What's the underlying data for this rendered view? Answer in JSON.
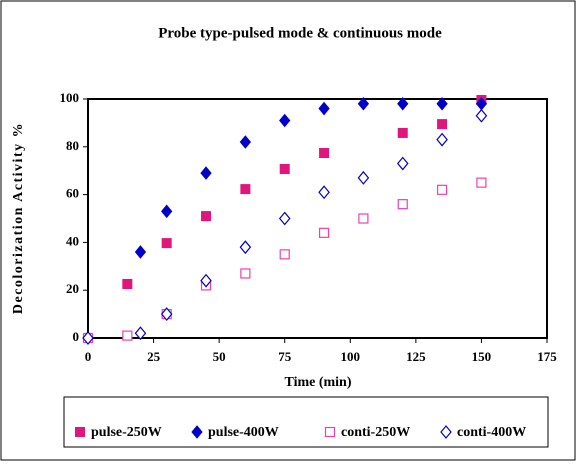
{
  "chart_data": {
    "type": "scatter",
    "title": "Probe  type-pulsed mode & continuous  mode",
    "xlabel": "Time (min)",
    "ylabel": "Decolorization Activity %",
    "xlim": [
      0,
      175
    ],
    "xticks": [
      0,
      25,
      50,
      75,
      100,
      125,
      150,
      175
    ],
    "ylim": [
      0,
      100
    ],
    "yticks": [
      0,
      20,
      40,
      60,
      80,
      100
    ],
    "legend": "bottom",
    "series": [
      {
        "name": "pulse-250W",
        "color": "#e0157d",
        "marker": "square",
        "filled": true,
        "x": [
          0,
          15,
          30,
          45,
          60,
          75,
          90,
          120,
          135,
          150
        ],
        "values": [
          0,
          22.6,
          39.7,
          51,
          62.3,
          70.7,
          77.4,
          85.8,
          89.5,
          99.6
        ]
      },
      {
        "name": "pulse-400W",
        "color": "#0000c8",
        "marker": "diamond",
        "filled": true,
        "x": [
          0,
          20,
          30,
          45,
          60,
          75,
          90,
          105,
          120,
          135,
          150
        ],
        "values": [
          0,
          36,
          53,
          69,
          82,
          91,
          96,
          98,
          98,
          98,
          98
        ]
      },
      {
        "name": "conti-250W",
        "color": "#f040b0",
        "marker": "square",
        "filled": false,
        "x": [
          0,
          15,
          30,
          45,
          60,
          75,
          90,
          105,
          120,
          135,
          150
        ],
        "values": [
          0,
          1,
          10,
          22,
          27,
          35,
          44,
          50,
          56,
          62,
          65
        ]
      },
      {
        "name": "conti-400W",
        "color": "#0000c8",
        "marker": "diamond",
        "filled": false,
        "x": [
          0,
          20,
          30,
          45,
          60,
          75,
          90,
          105,
          120,
          135,
          150
        ],
        "values": [
          0,
          2,
          10,
          24,
          38,
          50,
          61,
          67,
          73,
          83,
          93
        ]
      }
    ]
  }
}
